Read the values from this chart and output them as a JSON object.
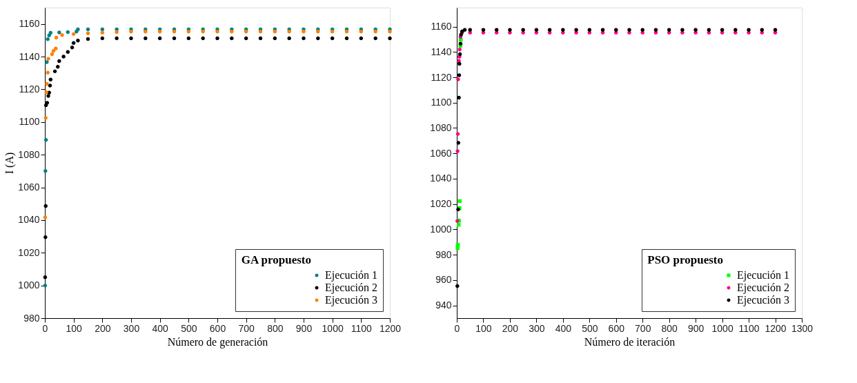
{
  "chart_data": [
    {
      "type": "scatter",
      "xlabel": "Número de generación",
      "ylabel": "I (A)",
      "legend_title": "GA propuesto",
      "legend": "bottom right",
      "grid": false,
      "marker": "circle",
      "xlim": [
        0,
        1200
      ],
      "xticks": [
        0,
        100,
        200,
        300,
        400,
        500,
        600,
        700,
        800,
        900,
        1000,
        1100,
        1200
      ],
      "ylim": [
        980,
        1170
      ],
      "yticks": [
        980,
        1000,
        1020,
        1040,
        1060,
        1080,
        1100,
        1120,
        1140,
        1160
      ],
      "series": [
        {
          "name": "Ejecución 1",
          "color": "#008080",
          "x": [
            1,
            2,
            4,
            7,
            10,
            15,
            20,
            50,
            80,
            110,
            115,
            150,
            200,
            250,
            300,
            350,
            400,
            450,
            500,
            550,
            600,
            650,
            700,
            750,
            800,
            850,
            900,
            950,
            1000,
            1050,
            1100,
            1150,
            1200
          ],
          "values": [
            1000,
            1070,
            1089,
            1136.6,
            1150.7,
            1153,
            1154.6,
            1154.8,
            1155,
            1155.3,
            1156.7,
            1156.7,
            1156.7,
            1156.7,
            1156.7,
            1156.7,
            1156.7,
            1156.7,
            1156.7,
            1156.7,
            1156.7,
            1156.7,
            1156.7,
            1156.7,
            1156.7,
            1156.7,
            1156.7,
            1156.7,
            1156.7,
            1156.7,
            1156.7,
            1156.7,
            1156.7
          ]
        },
        {
          "name": "Ejecución 2",
          "color": "#000000",
          "x": [
            1,
            2,
            3,
            4,
            8,
            12,
            15,
            18,
            20,
            35,
            45,
            50,
            65,
            80,
            95,
            100,
            115,
            150,
            200,
            250,
            300,
            350,
            400,
            450,
            500,
            550,
            600,
            650,
            700,
            750,
            800,
            850,
            900,
            950,
            1000,
            1050,
            1100,
            1150,
            1200
          ],
          "values": [
            1005,
            1029.5,
            1048.6,
            1110.3,
            1111.7,
            1116,
            1118,
            1122.3,
            1126,
            1131,
            1133.8,
            1137.3,
            1140,
            1142.9,
            1145.6,
            1148.4,
            1149.8,
            1150.8,
            1151.2,
            1151.2,
            1151.2,
            1151.2,
            1151.2,
            1151.2,
            1151.2,
            1151.2,
            1151.2,
            1151.2,
            1151.2,
            1151.2,
            1151.2,
            1151.2,
            1151.2,
            1151.2,
            1151.2,
            1151.2,
            1151.2,
            1151.2,
            1151.2
          ]
        },
        {
          "name": "Ejecución 3",
          "color": "#ff8000",
          "x": [
            1,
            3,
            5,
            7,
            10,
            12,
            25,
            30,
            38,
            40,
            60,
            100,
            150,
            200,
            250,
            300,
            350,
            400,
            450,
            500,
            550,
            600,
            650,
            700,
            750,
            800,
            850,
            900,
            950,
            1000,
            1050,
            1100,
            1150,
            1200
          ],
          "values": [
            1041.7,
            1102.5,
            1118.2,
            1123.3,
            1130.2,
            1138.7,
            1141.5,
            1143.5,
            1145,
            1151.6,
            1153.2,
            1153.8,
            1154.3,
            1154.7,
            1155,
            1155.3,
            1155.3,
            1155.3,
            1155.3,
            1155.3,
            1155.3,
            1155.3,
            1155.3,
            1155.3,
            1155.3,
            1155.3,
            1155.3,
            1155.3,
            1155.3,
            1155.3,
            1155.3,
            1155.3,
            1155.3,
            1155.3
          ]
        }
      ]
    },
    {
      "type": "scatter",
      "xlabel": "Número de iteración",
      "legend_title": "PSO propuesto",
      "legend": "bottom right",
      "grid": false,
      "marker": "circle",
      "xlim": [
        0,
        1300
      ],
      "xticks": [
        0,
        100,
        200,
        300,
        400,
        500,
        600,
        700,
        800,
        900,
        1000,
        1100,
        1200,
        1300
      ],
      "ylim": [
        930,
        1175
      ],
      "yticks": [
        940,
        960,
        980,
        1000,
        1020,
        1040,
        1060,
        1080,
        1100,
        1120,
        1140,
        1160
      ],
      "series": [
        {
          "name": "Ejecución 1",
          "color": "#00ff00",
          "marker": "square",
          "x": [
            3,
            4,
            7,
            8,
            10,
            11,
            14,
            15
          ],
          "values": [
            985.2,
            987.8,
            1003.7,
            1007,
            1016.7,
            1022.3,
            1144.9,
            1149.6
          ]
        },
        {
          "name": "Ejecución 2",
          "color": "#ff0080",
          "x": [
            2,
            3,
            4,
            5,
            8,
            10,
            11,
            14,
            20,
            50,
            100,
            150,
            200,
            250,
            300,
            350,
            400,
            450,
            500,
            550,
            600,
            650,
            700,
            750,
            800,
            850,
            900,
            950,
            1000,
            1050,
            1100,
            1150,
            1200
          ],
          "values": [
            1006.6,
            1061.7,
            1075.3,
            1118.4,
            1133,
            1136.2,
            1141.9,
            1151.8,
            1155.3,
            1155.3,
            1155.3,
            1155.3,
            1155.3,
            1155.3,
            1155.3,
            1155.3,
            1155.3,
            1155.3,
            1155.3,
            1155.3,
            1155.3,
            1155.3,
            1155.3,
            1155.3,
            1155.3,
            1155.3,
            1155.3,
            1155.3,
            1155.3,
            1155.3,
            1155.3,
            1155.3,
            1155.3
          ]
        },
        {
          "name": "Ejecución 3",
          "color": "#000000",
          "x": [
            2,
            5,
            6,
            8,
            9,
            10,
            12,
            14,
            16,
            20,
            30,
            50,
            100,
            150,
            200,
            250,
            300,
            350,
            400,
            450,
            500,
            550,
            600,
            650,
            700,
            750,
            800,
            850,
            900,
            950,
            1000,
            1050,
            1100,
            1150,
            1200
          ],
          "values": [
            955.3,
            1015.7,
            1068.3,
            1104,
            1121.7,
            1130.6,
            1138.3,
            1146.6,
            1153.6,
            1156.2,
            1157.4,
            1157.4,
            1157.4,
            1157.4,
            1157.4,
            1157.4,
            1157.4,
            1157.4,
            1157.4,
            1157.4,
            1157.4,
            1157.4,
            1157.4,
            1157.4,
            1157.4,
            1157.4,
            1157.4,
            1157.4,
            1157.4,
            1157.4,
            1157.4,
            1157.4,
            1157.4,
            1157.4,
            1157.4
          ]
        }
      ]
    }
  ]
}
